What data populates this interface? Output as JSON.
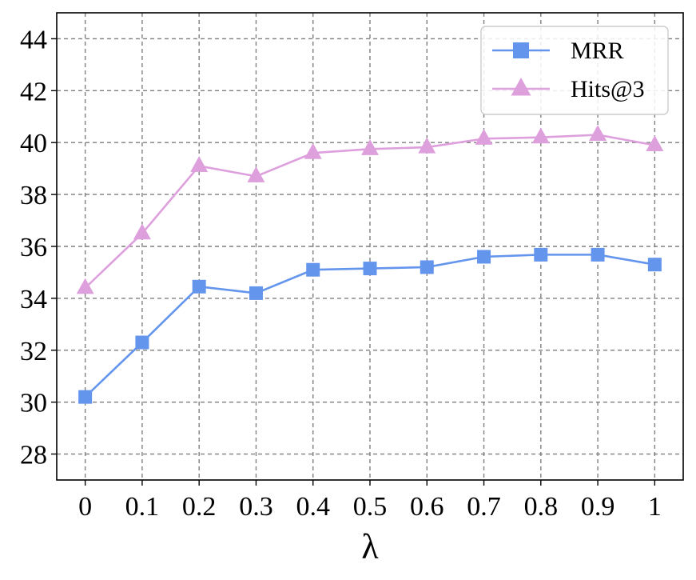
{
  "chart_data": {
    "type": "line",
    "title": "",
    "xlabel": "λ",
    "ylabel": "",
    "x": [
      0,
      0.1,
      0.2,
      0.3,
      0.4,
      0.5,
      0.6,
      0.7,
      0.8,
      0.9,
      1
    ],
    "x_tick_labels": [
      "0",
      "0.1",
      "0.2",
      "0.3",
      "0.4",
      "0.5",
      "0.6",
      "0.7",
      "0.8",
      "0.9",
      "1"
    ],
    "y_ticks": [
      28,
      30,
      32,
      34,
      36,
      38,
      40,
      42,
      44
    ],
    "xlim": [
      -0.05,
      1.05
    ],
    "ylim": [
      27.0,
      45.0
    ],
    "grid": true,
    "grid_style": "dashed",
    "legend_position": "top-right",
    "series": [
      {
        "name": "MRR",
        "marker": "square",
        "color": "#6495ED",
        "values": [
          30.2,
          32.3,
          34.45,
          34.2,
          35.1,
          35.15,
          35.2,
          35.6,
          35.68,
          35.68,
          35.3
        ]
      },
      {
        "name": "Hits@3",
        "marker": "triangle",
        "color": "#DDA0DD",
        "values": [
          34.4,
          36.5,
          39.1,
          38.7,
          39.6,
          39.75,
          39.82,
          40.15,
          40.2,
          40.3,
          39.9
        ]
      }
    ]
  }
}
